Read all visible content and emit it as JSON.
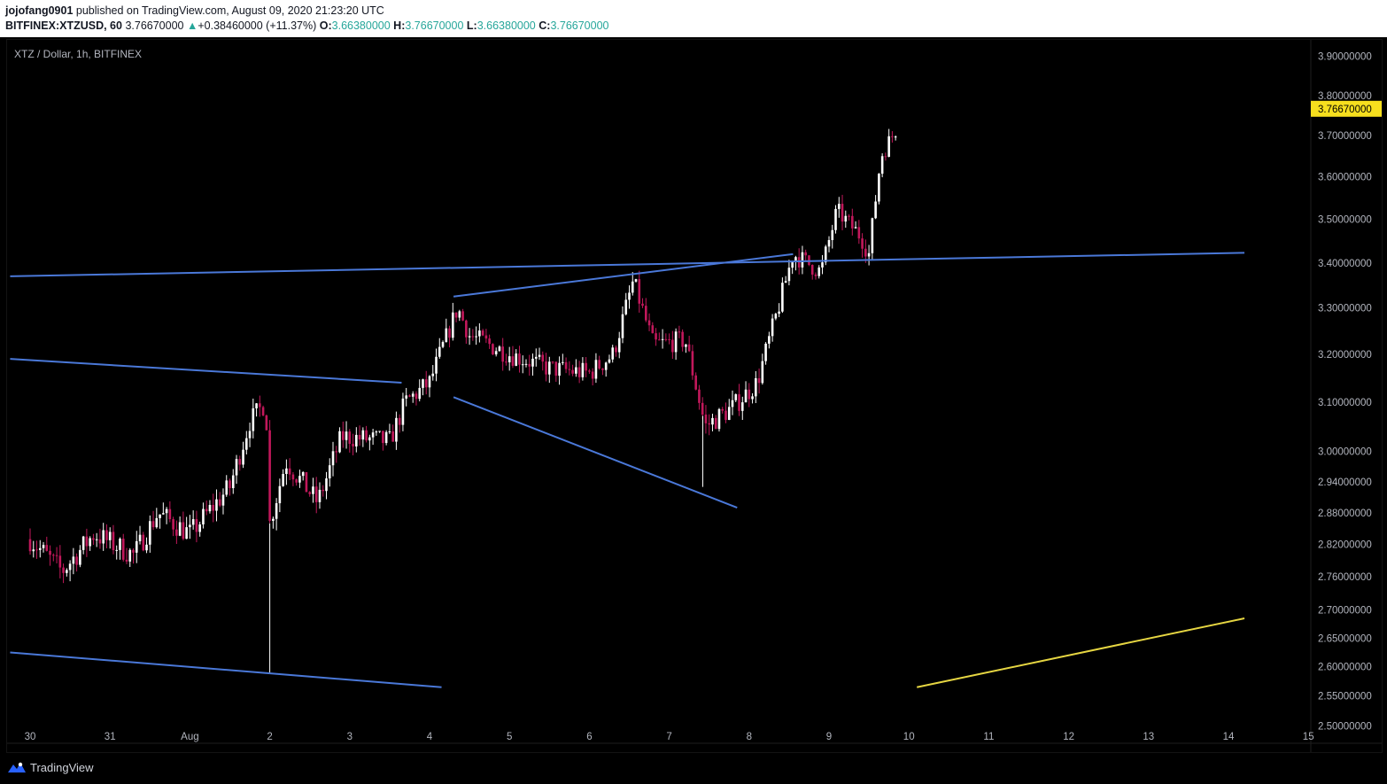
{
  "header": {
    "author": "jojofang0901",
    "published_text": "published on TradingView.com, August 09, 2020 21:23:20 UTC",
    "symbol": "BITFINEX:XTZUSD, 60",
    "last_price": "3.76670000",
    "change_arrow": "▲",
    "change": "+0.38460000 (+11.37%)",
    "o_label": "O:",
    "o_value": "3.66380000",
    "h_label": "H:",
    "h_value": "3.76670000",
    "l_label": "L:",
    "l_value": "3.66380000",
    "c_label": "C:",
    "c_value": "3.76670000"
  },
  "legend": "XTZ / Dollar, 1h, BITFINEX",
  "footer": {
    "brand": "TradingView",
    "logo_icon": "tradingview-logo-icon"
  },
  "colors": {
    "up": "#26a69a",
    "bull_body": "#ffffff",
    "bear_body": "#c2185b",
    "trendline": "#4a78d8",
    "yellow_line": "#e6d642",
    "price_label_bg": "#f7df1e"
  },
  "chart_data": {
    "type": "candlestick",
    "scale": "log",
    "price_axis_ticks": [
      "3.90000000",
      "3.80000000",
      "3.70000000",
      "3.60000000",
      "3.50000000",
      "3.40000000",
      "3.30000000",
      "3.20000000",
      "3.10000000",
      "3.00000000",
      "2.94000000",
      "2.88000000",
      "2.82000000",
      "2.76000000",
      "2.70000000",
      "2.65000000",
      "2.60000000",
      "2.55000000",
      "2.50000000"
    ],
    "time_axis_ticks": [
      "30",
      "31",
      "Aug",
      "2",
      "3",
      "4",
      "5",
      "6",
      "7",
      "8",
      "9",
      "10",
      "11",
      "12",
      "13",
      "14",
      "15"
    ],
    "current_price_label": "3.76670000",
    "ylim": [
      2.48,
      3.92
    ],
    "price_path_anchors": [
      [
        0,
        2.83
      ],
      [
        0.4,
        2.77
      ],
      [
        0.8,
        2.84
      ],
      [
        1.3,
        2.8
      ],
      [
        1.6,
        2.88
      ],
      [
        2.0,
        2.84
      ],
      [
        2.5,
        2.93
      ],
      [
        2.75,
        3.06
      ],
      [
        2.95,
        3.1
      ],
      [
        3.0,
        2.86
      ],
      [
        3.2,
        2.98
      ],
      [
        3.6,
        2.9
      ],
      [
        3.9,
        3.03
      ],
      [
        4.5,
        3.02
      ],
      [
        4.7,
        3.1
      ],
      [
        5.0,
        3.14
      ],
      [
        5.35,
        3.3
      ],
      [
        5.5,
        3.24
      ],
      [
        6.0,
        3.2
      ],
      [
        6.5,
        3.17
      ],
      [
        7.0,
        3.16
      ],
      [
        7.3,
        3.2
      ],
      [
        7.55,
        3.36
      ],
      [
        7.8,
        3.22
      ],
      [
        8.2,
        3.23
      ],
      [
        8.45,
        3.05
      ],
      [
        8.8,
        3.09
      ],
      [
        9.1,
        3.14
      ],
      [
        9.35,
        3.29
      ],
      [
        9.55,
        3.42
      ],
      [
        9.9,
        3.38
      ],
      [
        10.1,
        3.52
      ],
      [
        10.4,
        3.46
      ],
      [
        10.5,
        3.42
      ],
      [
        10.65,
        3.65
      ],
      [
        10.85,
        3.72
      ]
    ],
    "spike_wicks": [
      [
        3.0,
        2.59
      ],
      [
        8.42,
        2.93
      ]
    ],
    "trendlines": [
      {
        "from": [
          -0.25,
          3.37
        ],
        "to": [
          15.2,
          3.423
        ]
      },
      {
        "from": [
          -0.25,
          3.19
        ],
        "to": [
          4.65,
          3.14
        ]
      },
      {
        "from": [
          -0.25,
          2.625
        ],
        "to": [
          5.15,
          2.565
        ]
      },
      {
        "from": [
          5.3,
          3.325
        ],
        "to": [
          9.55,
          3.42
        ]
      },
      {
        "from": [
          5.3,
          3.11
        ],
        "to": [
          8.85,
          2.89
        ]
      }
    ],
    "yellow_line": {
      "from": [
        11.1,
        2.565
      ],
      "to": [
        15.2,
        2.685
      ]
    }
  }
}
